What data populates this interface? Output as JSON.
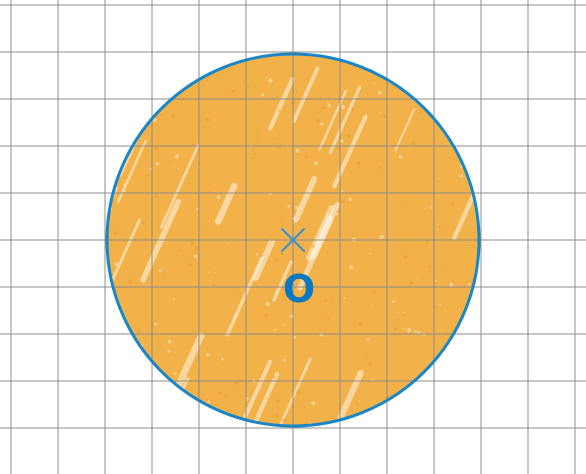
{
  "diagram": {
    "center_label": "O"
  },
  "colors": {
    "circle_fill": "#f2b149",
    "circle_outline": "#1a86c8",
    "center_mark": "#3a92cf",
    "label": "#0b78c2",
    "grid": "#8c8c8c"
  },
  "icons": {
    "center_marker": "cross-mark-icon"
  }
}
